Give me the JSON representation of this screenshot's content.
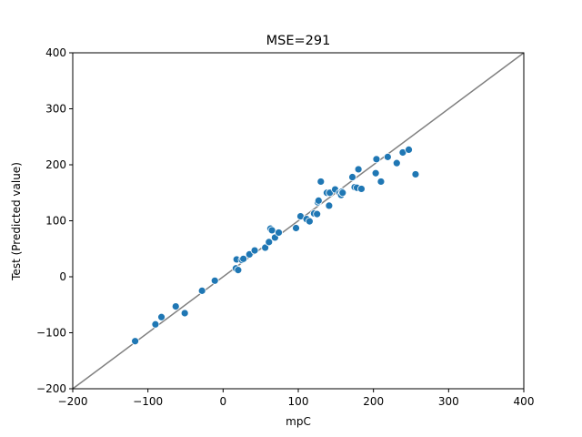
{
  "chart_data": {
    "type": "scatter",
    "title": "MSE=291",
    "xlabel": "mpC",
    "ylabel": "Test (Predicted value)",
    "xlim": [
      -200,
      400
    ],
    "ylim": [
      -200,
      400
    ],
    "xticks": [
      -200,
      -100,
      0,
      100,
      200,
      300,
      400
    ],
    "yticks": [
      -200,
      -100,
      0,
      100,
      200,
      300,
      400
    ],
    "xtick_labels": [
      "−200",
      "−100",
      "0",
      "100",
      "200",
      "300",
      "400"
    ],
    "ytick_labels": [
      "−200",
      "−100",
      "0",
      "100",
      "200",
      "300",
      "400"
    ],
    "grid": false,
    "reference_line": {
      "from": [
        -200,
        -200
      ],
      "to": [
        400,
        400
      ],
      "color": "#808080"
    },
    "point_color": "#1f77b4",
    "points": [
      [
        -117,
        -115
      ],
      [
        -90,
        -85
      ],
      [
        -82,
        -72
      ],
      [
        -63,
        -53
      ],
      [
        -51,
        -65
      ],
      [
        -28,
        -25
      ],
      [
        -11,
        -7
      ],
      [
        17,
        15
      ],
      [
        18,
        31
      ],
      [
        20,
        12
      ],
      [
        25,
        30
      ],
      [
        27,
        32
      ],
      [
        35,
        40
      ],
      [
        42,
        47
      ],
      [
        56,
        52
      ],
      [
        61,
        62
      ],
      [
        63,
        86
      ],
      [
        65,
        83
      ],
      [
        69,
        70
      ],
      [
        74,
        79
      ],
      [
        97,
        87
      ],
      [
        103,
        108
      ],
      [
        111,
        103
      ],
      [
        115,
        99
      ],
      [
        121,
        113
      ],
      [
        125,
        112
      ],
      [
        126,
        133
      ],
      [
        127,
        136
      ],
      [
        130,
        170
      ],
      [
        138,
        150
      ],
      [
        141,
        127
      ],
      [
        142,
        150
      ],
      [
        149,
        156
      ],
      [
        155,
        150
      ],
      [
        157,
        146
      ],
      [
        158,
        152
      ],
      [
        159,
        150
      ],
      [
        172,
        178
      ],
      [
        175,
        160
      ],
      [
        178,
        159
      ],
      [
        180,
        192
      ],
      [
        184,
        157
      ],
      [
        203,
        185
      ],
      [
        204,
        210
      ],
      [
        210,
        170
      ],
      [
        219,
        214
      ],
      [
        231,
        203
      ],
      [
        239,
        222
      ],
      [
        247,
        227
      ],
      [
        256,
        183
      ]
    ]
  }
}
